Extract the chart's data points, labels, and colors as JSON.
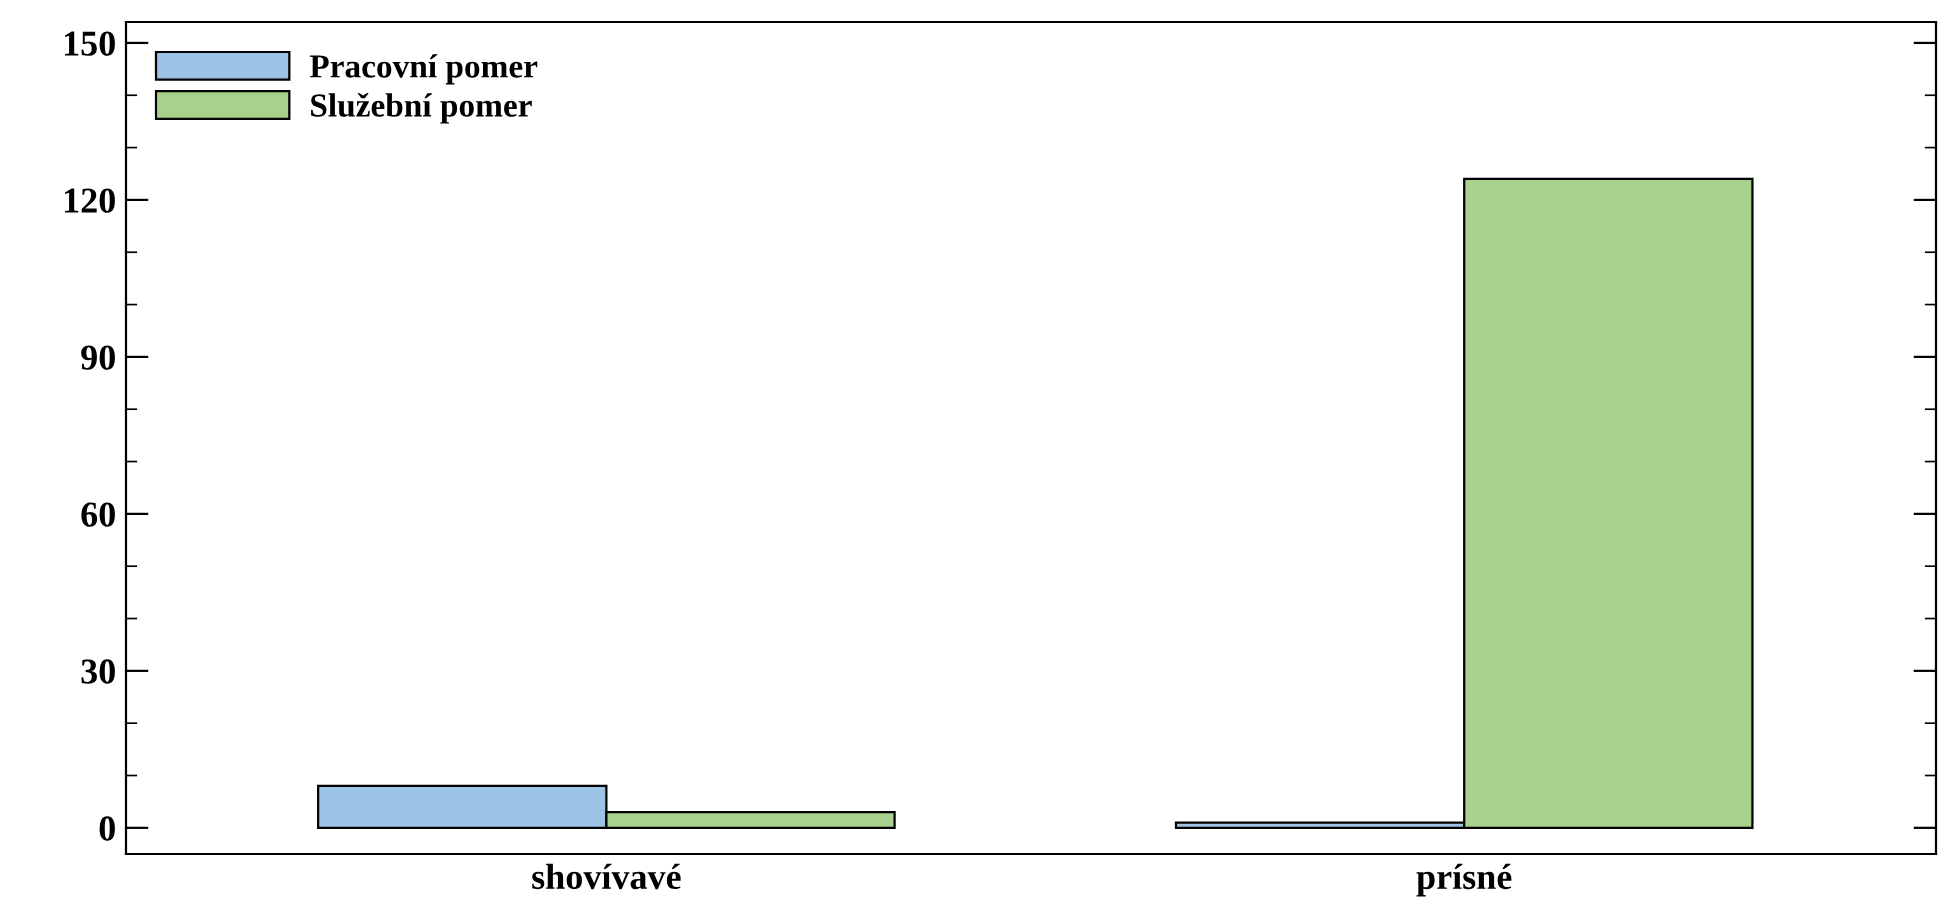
{
  "chart_data": {
    "type": "bar",
    "categories": [
      "shovívavé",
      "prísné"
    ],
    "series": [
      {
        "name": "Pracovní pomer",
        "color": "#9dc3e6",
        "values": [
          8,
          1
        ]
      },
      {
        "name": "Služební pomer",
        "color": "#a9d18e",
        "values": [
          3,
          124
        ]
      }
    ],
    "ylim": [
      -5,
      154
    ],
    "yticks": [
      0,
      30,
      60,
      90,
      120,
      150
    ],
    "grid": false,
    "legend": "top left"
  }
}
